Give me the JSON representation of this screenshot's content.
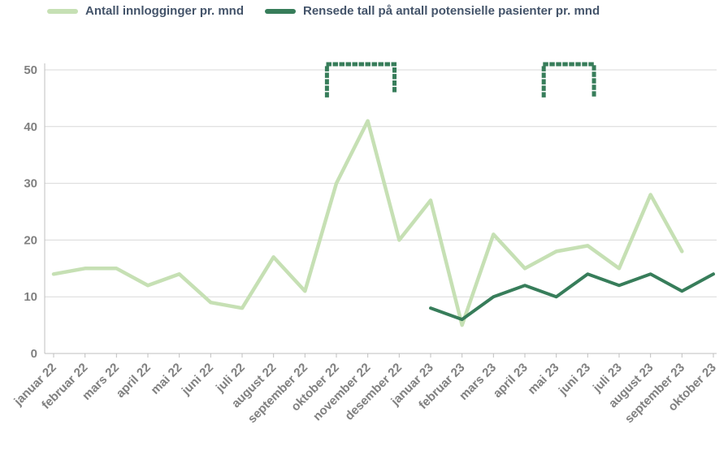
{
  "chart_data": {
    "type": "line",
    "title": "",
    "xlabel": "",
    "ylabel": "",
    "ylim": [
      0,
      50
    ],
    "yticks": [
      0,
      10,
      20,
      30,
      40,
      50
    ],
    "grid": "horizontal",
    "legend_position": "top-left",
    "categories": [
      "januar 22",
      "februar 22",
      "mars 22",
      "april 22",
      "mai 22",
      "juni 22",
      "juli 22",
      "august 22",
      "september 22",
      "oktober 22",
      "november 22",
      "desember 22",
      "januar 23",
      "februar 23",
      "mars 23",
      "april 23",
      "mai 23",
      "juni 23",
      "juli 23",
      "august 23",
      "september 23",
      "oktober 23"
    ],
    "series": [
      {
        "name": "Antall innlogginger pr. mnd",
        "color": "#c6e0b4",
        "values": [
          14,
          15,
          15,
          12,
          14,
          9,
          8,
          17,
          11,
          30,
          41,
          20,
          27,
          5,
          21,
          15,
          18,
          19,
          15,
          28,
          18,
          null
        ]
      },
      {
        "name": "Rensede tall på antall potensielle pasienter pr. mnd",
        "color": "#377d5a",
        "values": [
          null,
          null,
          null,
          null,
          null,
          null,
          null,
          null,
          null,
          null,
          null,
          null,
          8,
          6,
          10,
          12,
          10,
          14,
          12,
          14,
          11,
          14
        ]
      }
    ],
    "annotations": [
      {
        "type": "dashed-bracket",
        "start_index": 8.7,
        "end_index": 10.85,
        "top_value": 51,
        "drop_value": 45.5,
        "color": "#377d5a"
      },
      {
        "type": "dashed-bracket",
        "start_index": 15.6,
        "end_index": 17.2,
        "top_value": 51,
        "drop_value": 45.5,
        "color": "#377d5a"
      }
    ]
  },
  "colors": {
    "grid": "#d9d9d9",
    "axis": "#bfbfbf",
    "tick_label": "#808080",
    "legend_text": "#44546a",
    "background": "#ffffff"
  }
}
